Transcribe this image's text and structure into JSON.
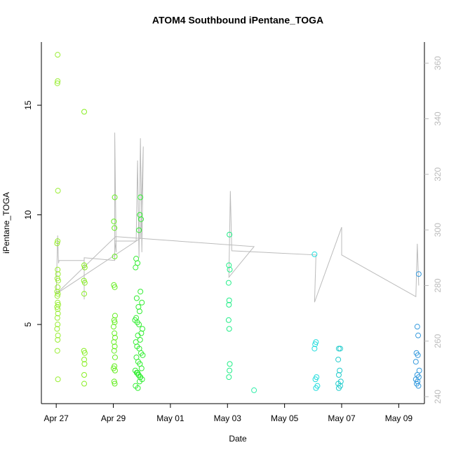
{
  "chart_data": {
    "type": "scatter",
    "title": "ATOM4 Southbound iPentane_TOGA",
    "x_label": "Date",
    "y_label": "iPentane_TOGA",
    "xlim": [
      -0.52,
      12.9
    ],
    "xticks": [
      {
        "value": 0,
        "label": "Apr 27"
      },
      {
        "value": 2,
        "label": "Apr 29"
      },
      {
        "value": 4,
        "label": "May 01"
      },
      {
        "value": 6,
        "label": "May 03"
      },
      {
        "value": 8,
        "label": "May 05"
      },
      {
        "value": 10,
        "label": "May 07"
      },
      {
        "value": 12,
        "label": "May 09"
      }
    ],
    "ylim": [
      1.39,
      17.88
    ],
    "yticks": [
      5,
      10,
      15
    ],
    "y2lim": [
      237.5,
      367.6
    ],
    "y2ticks": [
      240,
      260,
      280,
      300,
      320,
      340,
      360
    ],
    "groups": [
      {
        "color": "#99ee33",
        "x": [
          0.05,
          0.05,
          0.04,
          0.06,
          0.05,
          0.03,
          0.05,
          0.06,
          0.04,
          0.07,
          0.05,
          0.03,
          0.06,
          0.04,
          0.05,
          0.07,
          0.03,
          0.05,
          0.06,
          0.04,
          0.05,
          0.03,
          0.06,
          0.05,
          0.04,
          0.06
        ],
        "values": [
          17.3,
          16.1,
          16.0,
          11.1,
          8.8,
          8.7,
          7.5,
          7.3,
          7.1,
          7.0,
          6.7,
          6.5,
          6.4,
          6.3,
          6.0,
          5.9,
          5.8,
          5.7,
          5.5,
          5.3,
          5.0,
          4.8,
          4.5,
          4.3,
          3.8,
          2.5
        ]
      },
      {
        "color": "#88ee22",
        "x": [
          0.98,
          0.98,
          1.0,
          0.97,
          1.0,
          0.98,
          0.97,
          1.0,
          0.98,
          0.99,
          0.98,
          0.98
        ],
        "values": [
          14.7,
          7.7,
          7.6,
          7.0,
          6.9,
          6.4,
          3.8,
          3.7,
          3.4,
          3.2,
          2.7,
          2.3
        ]
      },
      {
        "color": "#66ee22",
        "x": [
          2.05,
          2.02,
          2.04,
          2.05,
          2.02,
          2.05,
          2.06,
          2.03,
          2.05,
          2.01,
          2.04,
          2.06,
          2.02,
          2.05,
          2.03,
          2.06,
          2.04,
          2.01,
          2.06,
          2.03,
          2.05
        ],
        "values": [
          10.8,
          9.7,
          9.4,
          8.1,
          6.8,
          6.7,
          5.4,
          5.2,
          5.1,
          4.9,
          4.6,
          4.4,
          4.2,
          4.0,
          3.8,
          3.5,
          3.1,
          3.0,
          2.9,
          2.4,
          2.3
        ]
      },
      {
        "color": "#33ee33",
        "x": [
          2.95,
          2.93,
          2.97,
          2.9,
          2.8,
          2.85,
          2.78,
          2.82,
          2.95,
          3.0,
          2.88,
          2.92,
          2.8,
          2.76,
          2.84,
          2.9,
          3.02,
          2.98,
          2.86,
          2.94,
          2.79,
          2.83,
          2.91,
          2.97,
          3.03,
          2.81,
          2.87,
          2.93,
          2.99,
          2.77,
          2.85,
          2.89,
          2.95,
          3.01,
          2.82,
          2.88,
          2.94,
          2.78,
          2.86,
          2.92
        ],
        "values": [
          10.8,
          10.0,
          9.8,
          9.3,
          8.0,
          7.8,
          7.6,
          6.2,
          6.5,
          6.0,
          5.8,
          5.6,
          5.3,
          5.2,
          5.1,
          5.0,
          4.8,
          4.6,
          4.5,
          4.3,
          4.2,
          4.0,
          3.9,
          3.7,
          3.6,
          3.5,
          3.3,
          3.2,
          3.0,
          2.9,
          2.8,
          2.7,
          2.6,
          2.5,
          2.8,
          2.7,
          2.6,
          2.2,
          2.1,
          2.4
        ]
      },
      {
        "color": "#22ee88",
        "x": [
          6.07,
          6.05,
          6.08,
          6.04,
          6.06,
          6.05,
          6.04,
          6.06,
          6.08,
          6.07,
          6.05
        ],
        "values": [
          9.1,
          7.7,
          7.5,
          6.9,
          6.1,
          5.9,
          5.2,
          4.8,
          3.2,
          2.9,
          2.6
        ]
      },
      {
        "color": "#33eeaa",
        "x": [
          6.93
        ],
        "values": [
          2.0
        ]
      },
      {
        "color": "#22dddd",
        "x": [
          9.05,
          9.1,
          9.07,
          9.05,
          9.12,
          9.08,
          9.15,
          9.1
        ],
        "values": [
          8.2,
          4.2,
          4.1,
          3.9,
          2.6,
          2.5,
          2.2,
          2.1
        ]
      },
      {
        "color": "#22cccc",
        "x": [
          9.9,
          9.95,
          9.88,
          9.93,
          9.9,
          9.97,
          9.88,
          9.95,
          9.9
        ],
        "values": [
          3.9,
          3.9,
          3.4,
          2.9,
          2.7,
          2.4,
          2.3,
          2.2,
          2.1
        ]
      },
      {
        "color": "#3399dd",
        "x": [
          12.7,
          12.65,
          12.68,
          12.62,
          12.67,
          12.6,
          12.72,
          12.65,
          12.7,
          12.6,
          12.66,
          12.63,
          12.69
        ],
        "values": [
          7.3,
          4.9,
          4.5,
          3.7,
          3.6,
          3.3,
          2.9,
          2.7,
          2.6,
          2.5,
          2.4,
          2.3,
          2.2
        ]
      }
    ],
    "line": {
      "color": "#bbbbbb",
      "axis": "y2",
      "x": [
        0.0,
        0.05,
        0.08,
        0.1,
        0.98,
        0.98,
        0.98,
        2.05,
        2.05,
        2.1,
        2.05,
        2.8,
        2.85,
        2.9,
        2.95,
        3.0,
        3.05,
        2.95,
        0.0,
        2.08,
        6.93,
        6.05,
        6.1,
        6.15,
        9.1,
        9.05,
        10.0,
        10.0,
        12.6,
        12.65,
        12.7
      ],
      "values": [
        277,
        298,
        288,
        289,
        289,
        275,
        290,
        289,
        335,
        292,
        296,
        296,
        325,
        290,
        333,
        292,
        330,
        297,
        277,
        297.6,
        294,
        283,
        314,
        292.5,
        291,
        274,
        301,
        291,
        276,
        295,
        280
      ]
    }
  }
}
